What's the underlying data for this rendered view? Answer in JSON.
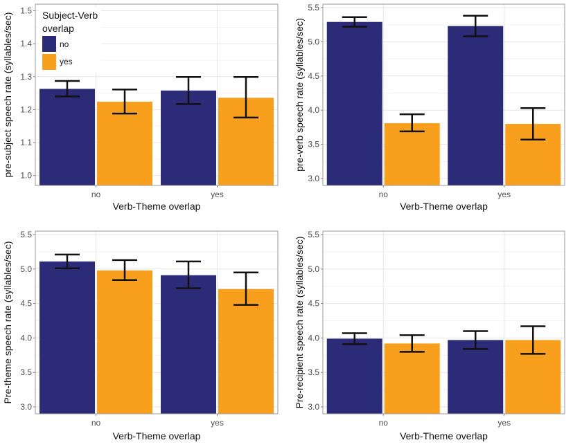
{
  "colors": {
    "no": "#2b2b78",
    "yes": "#f8a01e",
    "grid_major": "#e6e6e6",
    "grid_minor": "#f3f3f3",
    "panel_border": "#999999",
    "error_bar": "#111111"
  },
  "legend": {
    "title_line1": "Subject-Verb",
    "title_line2": "overlap",
    "entries": [
      {
        "key": "no",
        "label": "no"
      },
      {
        "key": "yes",
        "label": "yes"
      }
    ]
  },
  "chart_data": [
    {
      "type": "bar",
      "ylabel": "pre-subject speech rate (syllables/sec)",
      "xlabel": "Verb-Theme overlap",
      "categories": [
        "no",
        "yes"
      ],
      "ylim": [
        0.97,
        1.52
      ],
      "yticks": [
        1.0,
        1.1,
        1.2,
        1.3,
        1.4,
        1.5
      ],
      "series": [
        {
          "name": "no",
          "values": [
            1.263,
            1.258
          ],
          "err_low": [
            1.24,
            1.217
          ],
          "err_high": [
            1.287,
            1.299
          ]
        },
        {
          "name": "yes",
          "values": [
            1.224,
            1.236
          ],
          "err_low": [
            1.188,
            1.176
          ],
          "err_high": [
            1.261,
            1.299
          ]
        }
      ]
    },
    {
      "type": "bar",
      "ylabel": "pre-verb speech rate (syllables/sec)",
      "xlabel": "Verb-Theme overlap",
      "categories": [
        "no",
        "yes"
      ],
      "ylim": [
        2.9,
        5.55
      ],
      "yticks": [
        3.0,
        3.5,
        4.0,
        4.5,
        5.0,
        5.5
      ],
      "series": [
        {
          "name": "no",
          "values": [
            5.29,
            5.23
          ],
          "err_low": [
            5.22,
            5.08
          ],
          "err_high": [
            5.36,
            5.38
          ]
        },
        {
          "name": "yes",
          "values": [
            3.81,
            3.8
          ],
          "err_low": [
            3.69,
            3.57
          ],
          "err_high": [
            3.94,
            4.03
          ]
        }
      ]
    },
    {
      "type": "bar",
      "ylabel": "Pre-theme speech rate (syllables/sec)",
      "xlabel": "Verb-Theme overlap",
      "categories": [
        "no",
        "yes"
      ],
      "ylim": [
        2.9,
        5.55
      ],
      "yticks": [
        3.0,
        3.5,
        4.0,
        4.5,
        5.0,
        5.5
      ],
      "series": [
        {
          "name": "no",
          "values": [
            5.11,
            4.91
          ],
          "err_low": [
            5.01,
            4.72
          ],
          "err_high": [
            5.21,
            5.11
          ]
        },
        {
          "name": "yes",
          "values": [
            4.98,
            4.71
          ],
          "err_low": [
            4.84,
            4.48
          ],
          "err_high": [
            5.13,
            4.95
          ]
        }
      ]
    },
    {
      "type": "bar",
      "ylabel": "Pre-recipient speech rate (syllables/sec)",
      "xlabel": "Verb-Theme overlap",
      "categories": [
        "no",
        "yes"
      ],
      "ylim": [
        2.9,
        5.55
      ],
      "yticks": [
        3.0,
        3.5,
        4.0,
        4.5,
        5.0,
        5.5
      ],
      "series": [
        {
          "name": "no",
          "values": [
            3.99,
            3.97
          ],
          "err_low": [
            3.91,
            3.84
          ],
          "err_high": [
            4.07,
            4.1
          ]
        },
        {
          "name": "yes",
          "values": [
            3.92,
            3.97
          ],
          "err_low": [
            3.8,
            3.77
          ],
          "err_high": [
            4.04,
            4.17
          ]
        }
      ]
    }
  ]
}
